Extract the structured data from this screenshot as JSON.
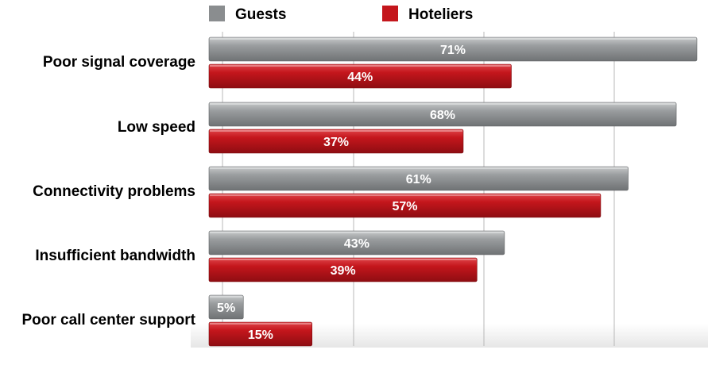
{
  "chart_data": {
    "type": "bar",
    "orientation": "horizontal",
    "categories": [
      "Poor signal coverage",
      "Low speed",
      "Connectivity problems",
      "Insufficient bandwidth",
      "Poor call center support"
    ],
    "series": [
      {
        "name": "Guests",
        "color": "#8a8d8f",
        "values": [
          71,
          68,
          61,
          43,
          5
        ],
        "labels": [
          "71%",
          "68%",
          "61%",
          "43%",
          "5%"
        ]
      },
      {
        "name": "Hoteliers",
        "color": "#c4161c",
        "values": [
          44,
          37,
          57,
          39,
          15
        ],
        "labels": [
          "44%",
          "37%",
          "57%",
          "39%",
          "15%"
        ]
      }
    ],
    "xlim": [
      0,
      71
    ],
    "grid": true,
    "legend": "top"
  }
}
